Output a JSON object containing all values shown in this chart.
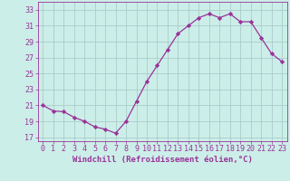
{
  "x": [
    0,
    1,
    2,
    3,
    4,
    5,
    6,
    7,
    8,
    9,
    10,
    11,
    12,
    13,
    14,
    15,
    16,
    17,
    18,
    19,
    20,
    21,
    22,
    23
  ],
  "y": [
    21.0,
    20.3,
    20.2,
    19.5,
    19.0,
    18.3,
    18.0,
    17.5,
    19.0,
    21.5,
    24.0,
    26.0,
    28.0,
    30.0,
    31.0,
    32.0,
    32.5,
    32.0,
    32.5,
    31.5,
    31.5,
    29.5,
    27.5,
    26.5
  ],
  "line_color": "#993399",
  "marker": "D",
  "marker_size": 2.2,
  "bg_color": "#cceee8",
  "grid_color": "#aacccc",
  "xlabel": "Windchill (Refroidissement éolien,°C)",
  "xlabel_fontsize": 6.5,
  "tick_fontsize": 6.0,
  "ylim": [
    16.5,
    34
  ],
  "yticks": [
    17,
    19,
    21,
    23,
    25,
    27,
    29,
    31,
    33
  ],
  "xlim": [
    -0.5,
    23.5
  ]
}
